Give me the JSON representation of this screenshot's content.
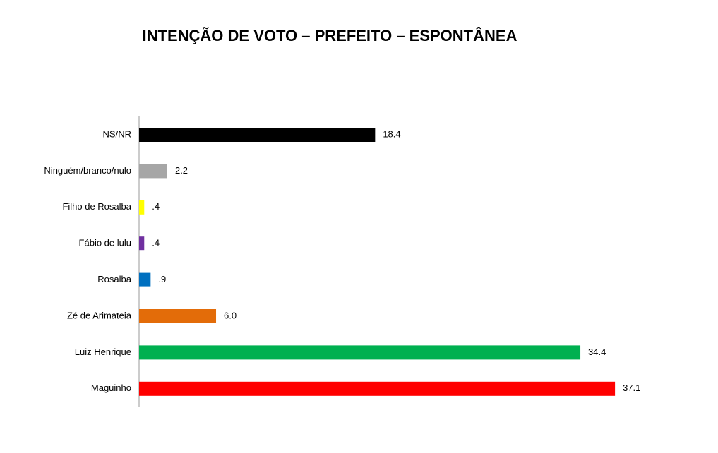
{
  "chart_data": {
    "type": "hbar",
    "title": "INTENÇÃO DE VOTO – PREFEITO – ESPONTÂNEA",
    "categories": [
      "NS/NR",
      "Ninguém/branco/nulo",
      "Filho de Rosalba",
      "Fábio de lulu",
      "Rosalba",
      "Zé de Arimateia",
      "Luiz Henrique",
      "Maguinho"
    ],
    "values": [
      18.4,
      2.2,
      0.4,
      0.4,
      0.9,
      6.0,
      34.4,
      37.1
    ],
    "value_labels": [
      "18.4",
      "2.2",
      ".4",
      ".4",
      ".9",
      "6.0",
      "34.4",
      "37.1"
    ],
    "colors": [
      "#000000",
      "#a6a6a6",
      "#ffff00",
      "#7030a0",
      "#0070c0",
      "#e36c09",
      "#00b050",
      "#ff0000"
    ]
  }
}
